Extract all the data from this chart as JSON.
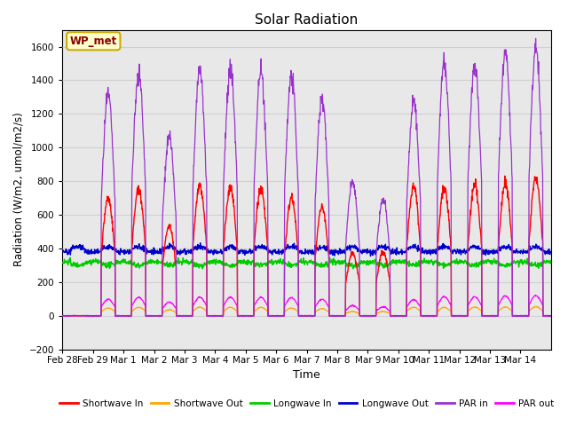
{
  "title": "Solar Radiation",
  "xlabel": "Time",
  "ylabel": "Radiation (W/m2, umol/m2/s)",
  "ylim": [
    -200,
    1700
  ],
  "yticks": [
    -200,
    0,
    200,
    400,
    600,
    800,
    1000,
    1200,
    1400,
    1600
  ],
  "x_tick_labels": [
    "Feb 28",
    "Feb 29",
    "Mar 1",
    "Mar 2",
    "Mar 3",
    "Mar 4",
    "Mar 5",
    "Mar 6",
    "Mar 7",
    "Mar 8",
    "Mar 9",
    "Mar 10",
    "Mar 11",
    "Mar 12",
    "Mar 13",
    "Mar 14"
  ],
  "colors": {
    "shortwave_in": "#ff0000",
    "shortwave_out": "#ffa500",
    "longwave_in": "#00cc00",
    "longwave_out": "#0000cc",
    "par_in": "#9933cc",
    "par_out": "#ff00ff"
  },
  "legend_labels": [
    "Shortwave In",
    "Shortwave Out",
    "Longwave In",
    "Longwave Out",
    "PAR in",
    "PAR out"
  ],
  "annotation_text": "WP_met",
  "annotation_bg": "#ffffcc",
  "annotation_border": "#ccaa00",
  "grid_color": "#d0d0d0",
  "bg_color": "#e8e8e8",
  "n_days": 16,
  "n_points_per_day": 96,
  "day_peaks_sw_in": [
    0,
    700,
    760,
    540,
    780,
    760,
    760,
    700,
    650,
    370,
    380,
    770,
    760,
    780,
    790,
    820
  ],
  "day_peaks_par_in": [
    0,
    1310,
    1450,
    1070,
    1470,
    1465,
    1460,
    1430,
    1300,
    800,
    700,
    1280,
    1510,
    1500,
    1570,
    1590
  ],
  "longwave_in_base": 320,
  "longwave_out_base": 380,
  "figsize": [
    6.4,
    4.8
  ],
  "dpi": 100
}
